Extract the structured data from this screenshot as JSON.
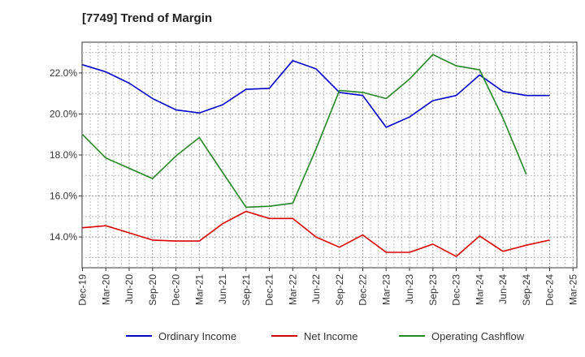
{
  "chart_data": {
    "type": "line",
    "title": "[7749]  Trend of Margin",
    "xlabel": "",
    "ylabel": "",
    "ylim": [
      12.5,
      23.5
    ],
    "yticks": [
      14.0,
      16.0,
      18.0,
      20.0,
      22.0
    ],
    "ytick_labels": [
      "14.0%",
      "16.0%",
      "18.0%",
      "20.0%",
      "22.0%"
    ],
    "categories": [
      "Dec-19",
      "Mar-20",
      "Jun-20",
      "Sep-20",
      "Dec-20",
      "Mar-21",
      "Jun-21",
      "Sep-21",
      "Dec-21",
      "Mar-22",
      "Jun-22",
      "Sep-22",
      "Dec-22",
      "Mar-23",
      "Jun-23",
      "Sep-23",
      "Dec-23",
      "Mar-24",
      "Jun-24",
      "Sep-24",
      "Dec-24",
      "Mar-25"
    ],
    "grid": true,
    "legend_position": "bottom",
    "series": [
      {
        "name": "Ordinary Income",
        "color": "#0000cc",
        "values": [
          22.4,
          22.05,
          21.5,
          20.75,
          20.2,
          20.05,
          20.45,
          21.2,
          21.25,
          22.6,
          22.2,
          21.05,
          20.9,
          19.35,
          19.85,
          20.65,
          20.9,
          21.9,
          21.1,
          20.9,
          20.9,
          null
        ]
      },
      {
        "name": "Net Income",
        "color": "#dd0000",
        "values": [
          14.45,
          14.55,
          14.2,
          13.85,
          13.8,
          13.8,
          14.65,
          15.25,
          14.9,
          14.9,
          14.0,
          13.5,
          14.1,
          13.25,
          13.25,
          13.65,
          13.05,
          14.05,
          13.3,
          13.6,
          13.85,
          null
        ]
      },
      {
        "name": "Operating Cashflow",
        "color": "#228822",
        "values": [
          19.0,
          17.85,
          17.35,
          16.85,
          17.95,
          18.85,
          17.15,
          15.45,
          15.5,
          15.65,
          18.3,
          21.15,
          21.05,
          20.75,
          21.7,
          22.9,
          22.35,
          22.15,
          19.8,
          17.05,
          null,
          null
        ]
      }
    ]
  }
}
